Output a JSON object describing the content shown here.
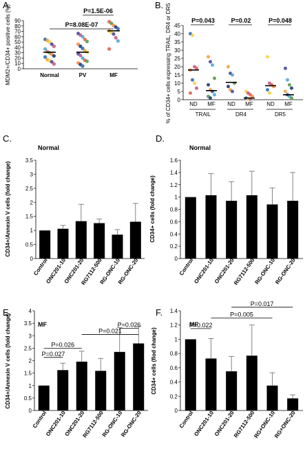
{
  "chart_data": [
    {
      "type": "scatter",
      "panel_label": "A.",
      "ylabel": "MDM2+/CD34+ positive cells (%)",
      "ylim": [
        0,
        90
      ],
      "yticks": [
        "0",
        "10",
        "20",
        "30",
        "40",
        "50",
        "60",
        "70",
        "80",
        "90"
      ],
      "categories": [
        "Normal",
        "PV",
        "MF"
      ],
      "medians": [
        31,
        31,
        71
      ],
      "points": [
        [
          55,
          53,
          50,
          46,
          42,
          37,
          32,
          30,
          27,
          24,
          22,
          17,
          15,
          13,
          9
        ],
        [
          66,
          63,
          60,
          55,
          51,
          46,
          42,
          38,
          34,
          31,
          28,
          25,
          20,
          16,
          14,
          11,
          8,
          5
        ],
        [
          88,
          85,
          81,
          78,
          75,
          71,
          68,
          65,
          58,
          52,
          37
        ]
      ],
      "comparisons": [
        {
          "label": "P=8.08E-07",
          "from": "Normal",
          "to": "MF"
        },
        {
          "label": "P=1.5E-06",
          "from": "PV",
          "to": "MF"
        }
      ]
    },
    {
      "type": "scatter",
      "panel_label": "B.",
      "ylabel": "% of CD34+ cells expressing TRAIL, DR4 or DR5",
      "ylim": [
        0,
        45
      ],
      "yticks": [
        "0",
        "5",
        "10",
        "15",
        "20",
        "25",
        "30",
        "35",
        "40",
        "45"
      ],
      "groups": [
        "TRAIL",
        "DR4",
        "DR5"
      ],
      "subgroups": [
        "ND",
        "MF"
      ],
      "medians": [
        [
          18,
          5.5
        ],
        [
          10.5,
          1
        ],
        [
          8.5,
          3
        ]
      ],
      "points": [
        [
          [
            40,
            39,
            20,
            19,
            18,
            12,
            10,
            7,
            4
          ],
          [
            26,
            23,
            21,
            13,
            9,
            6,
            5,
            3,
            2,
            1
          ]
        ],
        [
          [
            20,
            16,
            15,
            10,
            8,
            6,
            5
          ],
          [
            5,
            4,
            3,
            2,
            1,
            0.5,
            0.3
          ]
        ],
        [
          [
            26,
            10,
            9,
            8,
            6,
            4
          ],
          [
            19,
            12,
            9,
            7,
            5,
            3,
            2,
            1
          ]
        ]
      ],
      "comparisons": [
        "P=0.043",
        "P=0.02",
        "P=0.048"
      ]
    },
    {
      "type": "bar",
      "panel_label": "C.",
      "title": "Normal",
      "ylabel": "CD34+/Annexin V cells (fold change)",
      "ylim": [
        0,
        3.5
      ],
      "yticks": [
        "0",
        "0.5",
        "1",
        "1.5",
        "2",
        "2.5",
        "3",
        "3.5"
      ],
      "categories": [
        "Control",
        "ONC201-10",
        "ONC201-20",
        "RG7112-500",
        "RG-ONC-10",
        "RG-ONC-20"
      ],
      "values": [
        1.0,
        1.06,
        1.33,
        1.26,
        0.85,
        1.31
      ],
      "errors": [
        0,
        0.12,
        0.6,
        0.15,
        0.18,
        0.65
      ],
      "comparisons": []
    },
    {
      "type": "bar",
      "panel_label": "D.",
      "title": "Normal",
      "ylabel": "CD34+ cells (fold change)",
      "ylim": [
        0,
        1.6
      ],
      "yticks": [
        "0",
        "0.2",
        "0.4",
        "0.6",
        "0.8",
        "1",
        "1.2",
        "1.4",
        "1.6"
      ],
      "categories": [
        "Control",
        "ONC201-10",
        "ONC201-20",
        "RG7112-500",
        "RG-ONC-10",
        "RG-ONC-20"
      ],
      "values": [
        1.0,
        1.03,
        0.94,
        1.03,
        0.88,
        0.94
      ],
      "errors": [
        0,
        0.35,
        0.31,
        0.39,
        0.27,
        0.46
      ],
      "comparisons": []
    },
    {
      "type": "bar",
      "panel_label": "E.",
      "title": "MF",
      "ylabel": "CD34+/Annexin V cells (fold change)",
      "ylim": [
        0,
        4
      ],
      "yticks": [
        "0",
        "0.5",
        "1",
        "1.5",
        "2",
        "2.5",
        "3",
        "3.5",
        "4"
      ],
      "categories": [
        "Control",
        "ONC201-10",
        "ONC201-20",
        "RG7112-500",
        "RG-ONC-10",
        "RG-ONC-20"
      ],
      "values": [
        1.0,
        1.62,
        1.96,
        1.59,
        2.35,
        2.69
      ],
      "errors": [
        0,
        0.28,
        0.42,
        0.5,
        0.98,
        0.68
      ],
      "comparisons": [
        {
          "label": "P=0.027",
          "from": 0,
          "to": 1,
          "y": 2.13
        },
        {
          "label": "P=0.026",
          "from": 0,
          "to": 2,
          "y": 2.5
        },
        {
          "label": "P=0.021",
          "from": 2,
          "to": 5,
          "y": 3.05
        },
        {
          "label": "P=0.026",
          "from": 4,
          "to": 5,
          "y": 3.3
        }
      ]
    },
    {
      "type": "bar",
      "panel_label": "F.",
      "title": "MF",
      "ylabel": "CD34+ cells (flod change)",
      "ylim": [
        0,
        1.4
      ],
      "yticks": [
        "0",
        "0.2",
        "0.4",
        "0.6",
        "0.8",
        "1",
        "1.2",
        "1.4"
      ],
      "categories": [
        "Control",
        "ONC201-10",
        "ONC201-20",
        "RG7112-500",
        "RG+ONC-10",
        "RG+ONC-20"
      ],
      "values": [
        1.0,
        0.73,
        0.55,
        0.77,
        0.35,
        0.17
      ],
      "errors": [
        0,
        0.28,
        0.21,
        0.43,
        0.18,
        0.05
      ],
      "comparisons": [
        {
          "label": "P=0.022",
          "from": 0,
          "to": 1,
          "y": 1.15
        },
        {
          "label": "P=0.005",
          "from": 1,
          "to": 4,
          "y": 1.3
        },
        {
          "label": "P=0.017",
          "from": 2,
          "to": 5,
          "y": 1.45
        }
      ]
    }
  ]
}
